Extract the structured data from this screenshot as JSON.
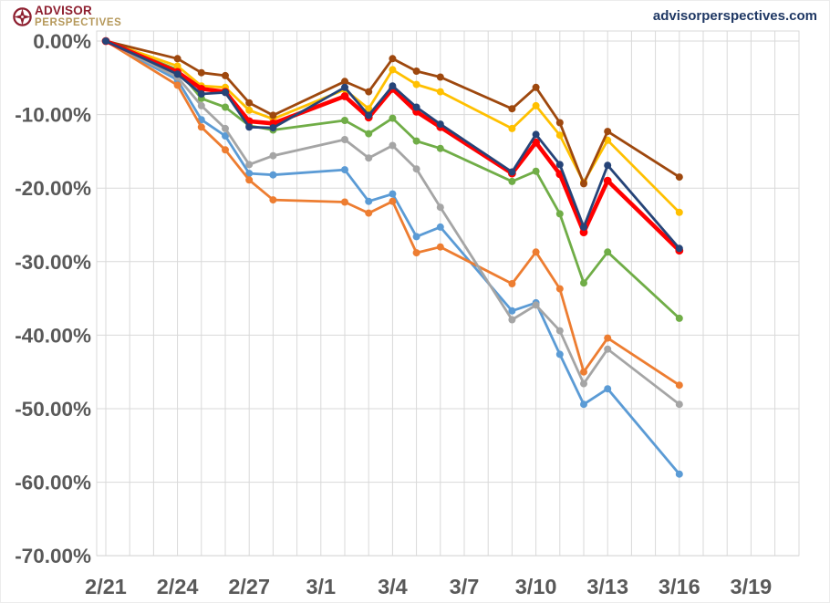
{
  "header": {
    "logo": {
      "icon": "compass-icon",
      "line1": "ADVISOR",
      "line2": "PERSPECTIVES",
      "primary_color": "#8E2030",
      "secondary_color": "#B5985A"
    },
    "site_url": "advisorperspectives.com",
    "site_url_color": "#1F3864"
  },
  "chart_data": {
    "type": "line",
    "title": "",
    "legend": "none",
    "grid": "both",
    "gridline_color": "#D9D9D9",
    "axis_text_color": "#595959",
    "background_color": "#FFFFFF",
    "y": {
      "unit": "percent-drawdown",
      "ylim": [
        -70,
        0
      ],
      "tick_values": [
        0,
        -10,
        -20,
        -30,
        -40,
        -50,
        -60,
        -70
      ],
      "tick_labels": [
        "0.00%",
        "-10.00%",
        "-20.00%",
        "-30.00%",
        "-40.00%",
        "-50.00%",
        "-60.00%",
        "-70.00%"
      ]
    },
    "x": {
      "unit": "date",
      "range_day_offsets": [
        0,
        28
      ],
      "tick_labels": [
        "2/21",
        "2/24",
        "2/27",
        "3/1",
        "3/4",
        "3/7",
        "3/10",
        "3/13",
        "3/16",
        "3/19"
      ],
      "tick_day_offsets": [
        0,
        3,
        6,
        9,
        12,
        15,
        18,
        21,
        24,
        27
      ],
      "point_dates": [
        "2/21",
        "2/24",
        "2/25",
        "2/26",
        "2/27",
        "2/28",
        "3/2",
        "3/3",
        "3/4",
        "3/5",
        "3/6",
        "3/9",
        "3/10",
        "3/11",
        "3/12",
        "3/13",
        "3/16"
      ],
      "point_day_offsets": [
        0,
        3,
        4,
        5,
        6,
        7,
        10,
        11,
        12,
        13,
        14,
        17,
        18,
        19,
        20,
        21,
        24
      ]
    },
    "series": [
      {
        "name": "light-blue",
        "color": "#5B9BD5",
        "emphasis": false,
        "values": [
          0,
          -5.3,
          -10.7,
          -12.9,
          -18.0,
          -18.2,
          -17.5,
          -21.8,
          -20.8,
          -26.6,
          -25.3,
          -36.7,
          -35.6,
          -42.6,
          -49.4,
          -47.3,
          -58.9
        ]
      },
      {
        "name": "orange",
        "color": "#ED7D31",
        "emphasis": false,
        "values": [
          0,
          -6.0,
          -11.7,
          -14.8,
          -18.9,
          -21.6,
          -21.9,
          -23.4,
          -21.8,
          -28.8,
          -28.0,
          -33.0,
          -28.7,
          -33.7,
          -45.0,
          -40.4,
          -46.8
        ]
      },
      {
        "name": "gray",
        "color": "#A5A5A5",
        "emphasis": false,
        "values": [
          0,
          -4.9,
          -8.8,
          -11.9,
          -16.8,
          -15.6,
          -13.4,
          -15.9,
          -14.2,
          -17.4,
          -22.6,
          -37.9,
          -35.9,
          -39.4,
          -46.6,
          -41.9,
          -49.4
        ]
      },
      {
        "name": "green",
        "color": "#70AD47",
        "emphasis": false,
        "values": [
          0,
          -3.9,
          -7.8,
          -9.0,
          -11.5,
          -12.1,
          -10.8,
          -12.6,
          -10.5,
          -13.6,
          -14.6,
          -19.1,
          -17.7,
          -23.5,
          -32.9,
          -28.7,
          -37.7
        ]
      },
      {
        "name": "gold",
        "color": "#FFC000",
        "emphasis": false,
        "values": [
          0,
          -3.4,
          -6.1,
          -6.3,
          -9.4,
          -10.6,
          -6.6,
          -9.2,
          -3.9,
          -5.9,
          -6.9,
          -11.9,
          -8.8,
          -12.8,
          -19.2,
          -13.5,
          -23.3
        ]
      },
      {
        "name": "dark-brown",
        "color": "#9E480E",
        "emphasis": false,
        "values": [
          0,
          -2.4,
          -4.3,
          -4.7,
          -8.4,
          -10.1,
          -5.5,
          -6.9,
          -2.4,
          -4.1,
          -4.9,
          -9.2,
          -6.3,
          -11.1,
          -19.4,
          -12.3,
          -18.5
        ]
      },
      {
        "name": "red",
        "color": "#FF0000",
        "emphasis": true,
        "values": [
          0,
          -4.2,
          -6.5,
          -6.9,
          -10.9,
          -11.2,
          -7.5,
          -10.4,
          -6.5,
          -9.6,
          -11.7,
          -18.0,
          -13.8,
          -18.1,
          -26.0,
          -19.0,
          -28.5
        ]
      },
      {
        "name": "dark-blue",
        "color": "#264478",
        "emphasis": false,
        "values": [
          0,
          -4.5,
          -7.2,
          -7.0,
          -11.7,
          -11.8,
          -6.3,
          -10.1,
          -6.1,
          -9.0,
          -11.3,
          -17.8,
          -12.7,
          -16.8,
          -25.3,
          -16.9,
          -28.2
        ]
      }
    ]
  }
}
